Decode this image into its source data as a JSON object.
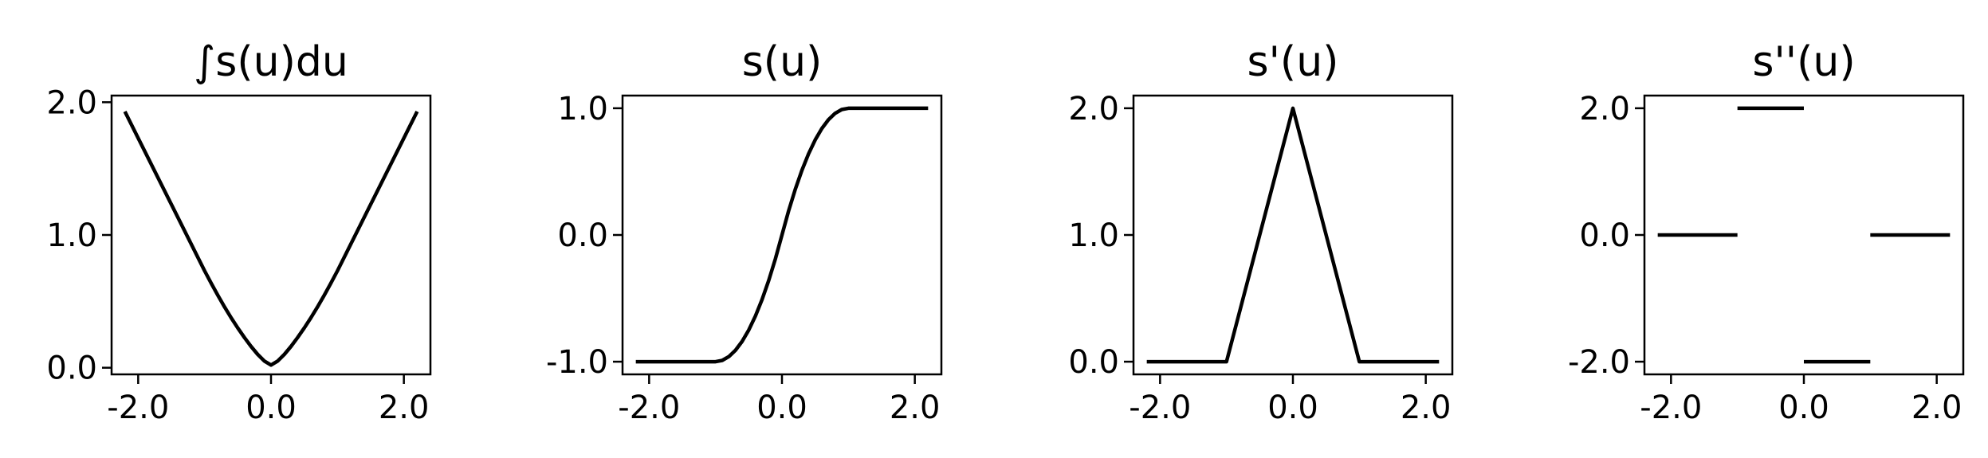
{
  "chart_data": [
    {
      "type": "line",
      "title": "∫s(u)du",
      "xlim": [
        -2.4,
        2.4
      ],
      "ylim": [
        -0.05,
        2.05
      ],
      "xticks": [
        -2.0,
        0.0,
        2.0
      ],
      "xtick_labels": [
        "-2.0",
        "0.0",
        "2.0"
      ],
      "yticks": [
        0.0,
        1.0,
        2.0
      ],
      "ytick_labels": [
        "0.0",
        "1.0",
        "2.0"
      ],
      "series": [
        {
          "color": "#000000",
          "segments": [
            [
              [
                -2.2,
                1.93
              ],
              [
                -2.0,
                1.73
              ],
              [
                -1.5,
                1.23
              ],
              [
                -1.0,
                0.73
              ],
              [
                -0.9,
                0.636
              ],
              [
                -0.8,
                0.545
              ],
              [
                -0.7,
                0.458
              ],
              [
                -0.6,
                0.376
              ],
              [
                -0.5,
                0.299
              ],
              [
                -0.4,
                0.227
              ],
              [
                -0.3,
                0.16
              ],
              [
                -0.2,
                0.1
              ],
              [
                -0.1,
                0.05
              ],
              [
                0.0,
                0.02
              ],
              [
                0.1,
                0.05
              ],
              [
                0.2,
                0.1
              ],
              [
                0.3,
                0.16
              ],
              [
                0.4,
                0.227
              ],
              [
                0.5,
                0.299
              ],
              [
                0.6,
                0.376
              ],
              [
                0.7,
                0.458
              ],
              [
                0.8,
                0.545
              ],
              [
                0.9,
                0.636
              ],
              [
                1.0,
                0.73
              ],
              [
                1.5,
                1.23
              ],
              [
                2.0,
                1.73
              ],
              [
                2.2,
                1.93
              ]
            ]
          ]
        }
      ]
    },
    {
      "type": "line",
      "title": "s(u)",
      "xlim": [
        -2.4,
        2.4
      ],
      "ylim": [
        -1.1,
        1.1
      ],
      "xticks": [
        -2.0,
        0.0,
        2.0
      ],
      "xtick_labels": [
        "-2.0",
        "0.0",
        "2.0"
      ],
      "yticks": [
        -1.0,
        0.0,
        1.0
      ],
      "ytick_labels": [
        "-1.0",
        "0.0",
        "1.0"
      ],
      "series": [
        {
          "color": "#000000",
          "segments": [
            [
              [
                -2.2,
                -1.0
              ],
              [
                -1.0,
                -1.0
              ],
              [
                -0.9,
                -0.99
              ],
              [
                -0.8,
                -0.96
              ],
              [
                -0.7,
                -0.91
              ],
              [
                -0.6,
                -0.84
              ],
              [
                -0.5,
                -0.75
              ],
              [
                -0.4,
                -0.64
              ],
              [
                -0.3,
                -0.51
              ],
              [
                -0.2,
                -0.36
              ],
              [
                -0.1,
                -0.19
              ],
              [
                0.0,
                0.0
              ],
              [
                0.1,
                0.19
              ],
              [
                0.2,
                0.36
              ],
              [
                0.3,
                0.51
              ],
              [
                0.4,
                0.64
              ],
              [
                0.5,
                0.75
              ],
              [
                0.6,
                0.84
              ],
              [
                0.7,
                0.91
              ],
              [
                0.8,
                0.96
              ],
              [
                0.9,
                0.99
              ],
              [
                1.0,
                1.0
              ],
              [
                2.2,
                1.0
              ]
            ]
          ]
        }
      ]
    },
    {
      "type": "line",
      "title": "s'(u)",
      "xlim": [
        -2.4,
        2.4
      ],
      "ylim": [
        -0.1,
        2.1
      ],
      "xticks": [
        -2.0,
        0.0,
        2.0
      ],
      "xtick_labels": [
        "-2.0",
        "0.0",
        "2.0"
      ],
      "yticks": [
        0.0,
        1.0,
        2.0
      ],
      "ytick_labels": [
        "0.0",
        "1.0",
        "2.0"
      ],
      "series": [
        {
          "color": "#000000",
          "segments": [
            [
              [
                -2.2,
                0.0
              ],
              [
                -1.0,
                0.0
              ],
              [
                0.0,
                2.0
              ],
              [
                1.0,
                0.0
              ],
              [
                2.2,
                0.0
              ]
            ]
          ]
        }
      ]
    },
    {
      "type": "line",
      "title": "s''(u)",
      "xlim": [
        -2.4,
        2.4
      ],
      "ylim": [
        -2.2,
        2.2
      ],
      "xticks": [
        -2.0,
        0.0,
        2.0
      ],
      "xtick_labels": [
        "-2.0",
        "0.0",
        "2.0"
      ],
      "yticks": [
        -2.0,
        0.0,
        2.0
      ],
      "ytick_labels": [
        "-2.0",
        "0.0",
        "2.0"
      ],
      "series": [
        {
          "color": "#000000",
          "segments": [
            [
              [
                -2.2,
                0.0
              ],
              [
                -1.0,
                0.0
              ]
            ],
            [
              [
                -1.0,
                2.0
              ],
              [
                0.0,
                2.0
              ]
            ],
            [
              [
                0.0,
                -2.0
              ],
              [
                1.0,
                -2.0
              ]
            ],
            [
              [
                1.0,
                0.0
              ],
              [
                2.2,
                0.0
              ]
            ]
          ]
        }
      ]
    }
  ]
}
